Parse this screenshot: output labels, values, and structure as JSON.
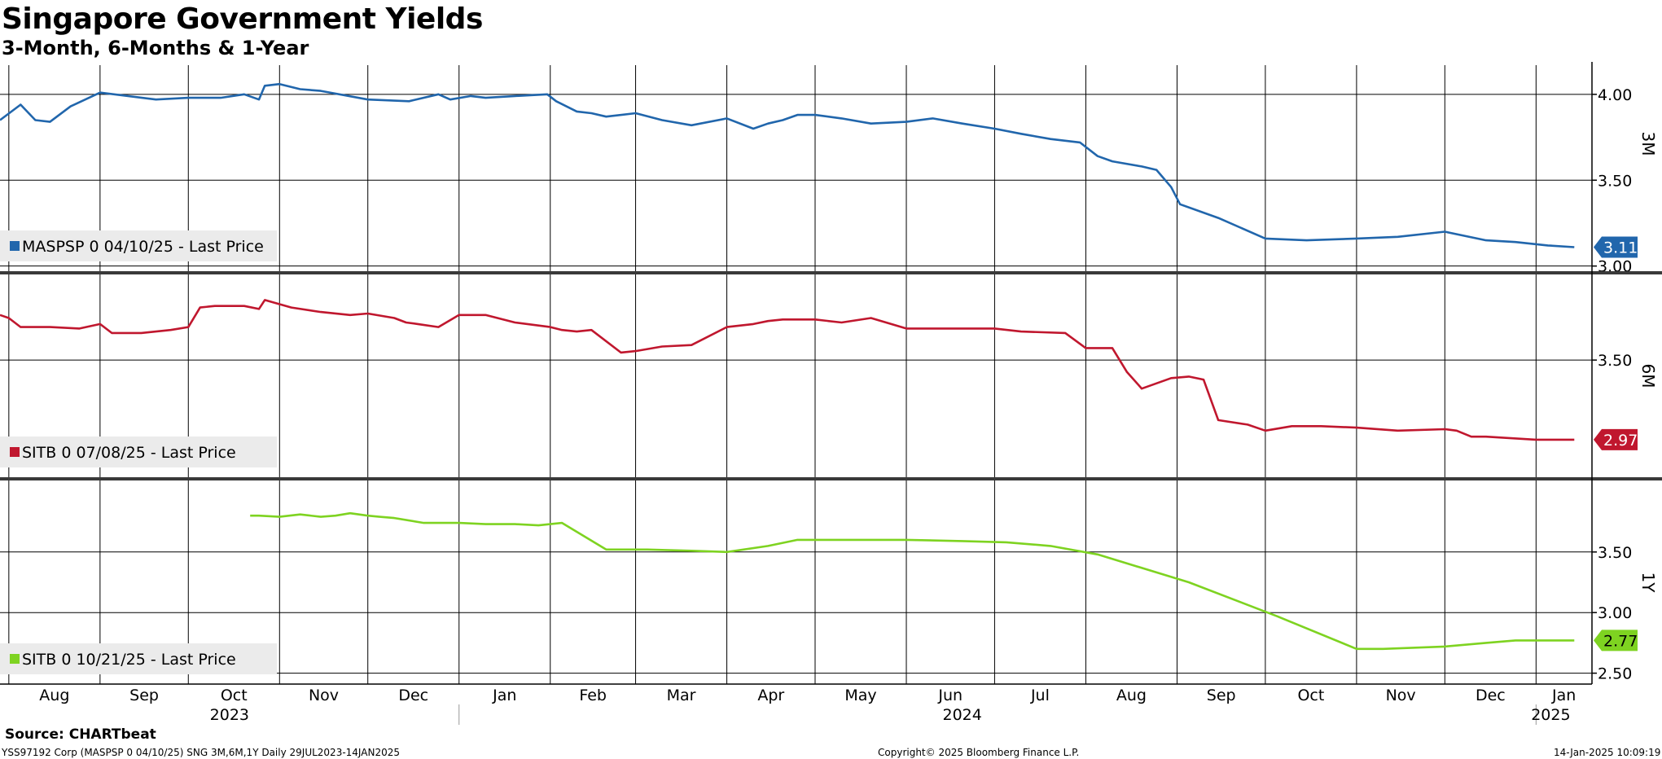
{
  "title": "Singapore Government Yields",
  "subtitle": "3-Month, 6-Months & 1-Year",
  "source": "Source: CHARTbeat",
  "footer": {
    "left": "YSS97192 Corp (MASPSP 0 04/10/25) SNG 3M,6M,1Y  Daily 29JUL2023-14JAN2025",
    "center": "Copyright© 2025 Bloomberg Finance L.P.",
    "right": "14-Jan-2025 10:09:19"
  },
  "colors": {
    "3M": "#2166ac",
    "6M": "#c0172e",
    "1Y": "#7ed321"
  },
  "chart_data": [
    {
      "type": "line",
      "panel_label": "3M",
      "legend": "MASPSP 0 04/10/25 - Last Price",
      "last_value": "3.11",
      "ylim": [
        2.97,
        4.17
      ],
      "yticks": [
        "3.00",
        "3.50",
        "4.00"
      ],
      "series": [
        {
          "name": "MASPSP 0 04/10/25 - Last Price",
          "x": [
            "2023-07-29",
            "2023-08-05",
            "2023-08-10",
            "2023-08-15",
            "2023-08-22",
            "2023-09-01",
            "2023-09-20",
            "2023-10-01",
            "2023-10-12",
            "2023-10-20",
            "2023-10-25",
            "2023-10-27",
            "2023-11-01",
            "2023-11-08",
            "2023-11-15",
            "2023-12-01",
            "2023-12-15",
            "2023-12-25",
            "2023-12-29",
            "2024-01-05",
            "2024-01-10",
            "2024-01-20",
            "2024-01-31",
            "2024-02-03",
            "2024-02-10",
            "2024-02-15",
            "2024-02-20",
            "2024-03-01",
            "2024-03-10",
            "2024-03-20",
            "2024-04-01",
            "2024-04-10",
            "2024-04-15",
            "2024-04-20",
            "2024-04-25",
            "2024-05-01",
            "2024-05-10",
            "2024-05-20",
            "2024-06-01",
            "2024-06-10",
            "2024-06-20",
            "2024-07-01",
            "2024-07-10",
            "2024-07-20",
            "2024-07-30",
            "2024-08-05",
            "2024-08-10",
            "2024-08-20",
            "2024-08-25",
            "2024-08-30",
            "2024-09-02",
            "2024-09-15",
            "2024-10-01",
            "2024-10-15",
            "2024-11-01",
            "2024-11-15",
            "2024-12-01",
            "2024-12-15",
            "2024-12-25",
            "2025-01-05",
            "2025-01-14"
          ],
          "y": [
            3.85,
            3.94,
            3.85,
            3.84,
            3.93,
            4.01,
            3.97,
            3.98,
            3.98,
            4.0,
            3.97,
            4.05,
            4.06,
            4.03,
            4.02,
            3.97,
            3.96,
            4.0,
            3.97,
            3.99,
            3.98,
            3.99,
            4.0,
            3.96,
            3.9,
            3.89,
            3.87,
            3.89,
            3.85,
            3.82,
            3.86,
            3.8,
            3.83,
            3.85,
            3.88,
            3.88,
            3.86,
            3.83,
            3.84,
            3.86,
            3.83,
            3.8,
            3.77,
            3.74,
            3.72,
            3.64,
            3.61,
            3.58,
            3.56,
            3.46,
            3.36,
            3.28,
            3.16,
            3.15,
            3.16,
            3.17,
            3.2,
            3.15,
            3.14,
            3.12,
            3.11
          ]
        }
      ]
    },
    {
      "type": "line",
      "panel_label": "6M",
      "legend": "SITB 0 07/08/25 - Last Price",
      "last_value": "2.97",
      "ylim": [
        2.72,
        4.07
      ],
      "yticks": [
        "3.50"
      ],
      "series": [
        {
          "name": "SITB 0 07/08/25 - Last Price",
          "x": [
            "2023-07-29",
            "2023-08-01",
            "2023-08-05",
            "2023-08-15",
            "2023-08-25",
            "2023-09-01",
            "2023-09-05",
            "2023-09-15",
            "2023-09-25",
            "2023-10-01",
            "2023-10-05",
            "2023-10-10",
            "2023-10-20",
            "2023-10-25",
            "2023-10-27",
            "2023-11-05",
            "2023-11-15",
            "2023-11-25",
            "2023-12-01",
            "2023-12-10",
            "2023-12-14",
            "2023-12-18",
            "2023-12-25",
            "2024-01-01",
            "2024-01-10",
            "2024-01-20",
            "2024-02-01",
            "2024-02-05",
            "2024-02-10",
            "2024-02-15",
            "2024-02-25",
            "2024-03-01",
            "2024-03-10",
            "2024-03-20",
            "2024-04-01",
            "2024-04-10",
            "2024-04-15",
            "2024-04-20",
            "2024-05-01",
            "2024-05-10",
            "2024-05-20",
            "2024-06-01",
            "2024-06-10",
            "2024-06-20",
            "2024-07-01",
            "2024-07-10",
            "2024-07-25",
            "2024-08-01",
            "2024-08-10",
            "2024-08-15",
            "2024-08-20",
            "2024-08-30",
            "2024-09-05",
            "2024-09-10",
            "2024-09-15",
            "2024-09-25",
            "2024-10-01",
            "2024-10-10",
            "2024-10-20",
            "2024-11-01",
            "2024-11-15",
            "2024-12-01",
            "2024-12-05",
            "2024-12-10",
            "2024-12-15",
            "2025-01-01",
            "2025-01-14"
          ],
          "y": [
            3.8,
            3.78,
            3.72,
            3.72,
            3.71,
            3.74,
            3.68,
            3.68,
            3.7,
            3.72,
            3.85,
            3.86,
            3.86,
            3.84,
            3.9,
            3.85,
            3.82,
            3.8,
            3.81,
            3.78,
            3.75,
            3.74,
            3.72,
            3.8,
            3.8,
            3.75,
            3.72,
            3.7,
            3.69,
            3.7,
            3.55,
            3.56,
            3.59,
            3.6,
            3.72,
            3.74,
            3.76,
            3.77,
            3.77,
            3.75,
            3.78,
            3.71,
            3.71,
            3.71,
            3.71,
            3.69,
            3.68,
            3.58,
            3.58,
            3.42,
            3.31,
            3.38,
            3.39,
            3.37,
            3.1,
            3.07,
            3.03,
            3.06,
            3.06,
            3.05,
            3.03,
            3.04,
            3.03,
            2.99,
            2.99,
            2.97,
            2.97
          ]
        }
      ]
    },
    {
      "type": "line",
      "panel_label": "1Y",
      "legend": "SITB 0 10/21/25 - Last Price",
      "last_value": "2.77",
      "ylim": [
        2.41,
        4.09
      ],
      "yticks": [
        "2.50",
        "3.00",
        "3.50"
      ],
      "series": [
        {
          "name": "SITB 0 10/21/25 - Last Price",
          "x": [
            "2023-10-22",
            "2023-10-25",
            "2023-11-01",
            "2023-11-08",
            "2023-11-15",
            "2023-11-20",
            "2023-11-25",
            "2023-12-01",
            "2023-12-05",
            "2023-12-10",
            "2023-12-20",
            "2024-01-01",
            "2024-01-10",
            "2024-01-20",
            "2024-01-28",
            "2024-02-05",
            "2024-02-20",
            "2024-03-05",
            "2024-03-20",
            "2024-04-01",
            "2024-04-15",
            "2024-04-25",
            "2024-05-10",
            "2024-06-01",
            "2024-06-20",
            "2024-07-05",
            "2024-07-20",
            "2024-08-05",
            "2024-09-05",
            "2024-10-05",
            "2024-11-01",
            "2024-11-10",
            "2024-12-01",
            "2024-12-15",
            "2024-12-25",
            "2025-01-14"
          ],
          "y": [
            3.8,
            3.8,
            3.79,
            3.81,
            3.79,
            3.8,
            3.82,
            3.8,
            3.79,
            3.78,
            3.74,
            3.74,
            3.73,
            3.73,
            3.72,
            3.74,
            3.52,
            3.52,
            3.51,
            3.5,
            3.55,
            3.6,
            3.6,
            3.6,
            3.59,
            3.58,
            3.55,
            3.48,
            3.25,
            2.97,
            2.7,
            2.7,
            2.72,
            2.75,
            2.77,
            2.77
          ]
        }
      ]
    }
  ],
  "x_axis": {
    "months": [
      {
        "date": "2023-08-01",
        "label": "Aug"
      },
      {
        "date": "2023-09-01",
        "label": "Sep"
      },
      {
        "date": "2023-10-01",
        "label": "Oct"
      },
      {
        "date": "2023-11-01",
        "label": "Nov"
      },
      {
        "date": "2023-12-01",
        "label": "Dec"
      },
      {
        "date": "2024-01-01",
        "label": "Jan"
      },
      {
        "date": "2024-02-01",
        "label": "Feb"
      },
      {
        "date": "2024-03-01",
        "label": "Mar"
      },
      {
        "date": "2024-04-01",
        "label": "Apr"
      },
      {
        "date": "2024-05-01",
        "label": "May"
      },
      {
        "date": "2024-06-01",
        "label": "Jun"
      },
      {
        "date": "2024-07-01",
        "label": "Jul"
      },
      {
        "date": "2024-08-01",
        "label": "Aug"
      },
      {
        "date": "2024-09-01",
        "label": "Sep"
      },
      {
        "date": "2024-10-01",
        "label": "Oct"
      },
      {
        "date": "2024-11-01",
        "label": "Nov"
      },
      {
        "date": "2024-12-01",
        "label": "Dec"
      },
      {
        "date": "2025-01-01",
        "label": "Jan"
      }
    ],
    "years": [
      {
        "date": "2023-10-15",
        "label": "2023"
      },
      {
        "date": "2024-06-20",
        "label": "2024"
      },
      {
        "date": "2025-01-06",
        "label": "2025"
      }
    ],
    "range": [
      "2023-07-29",
      "2025-01-20"
    ]
  }
}
